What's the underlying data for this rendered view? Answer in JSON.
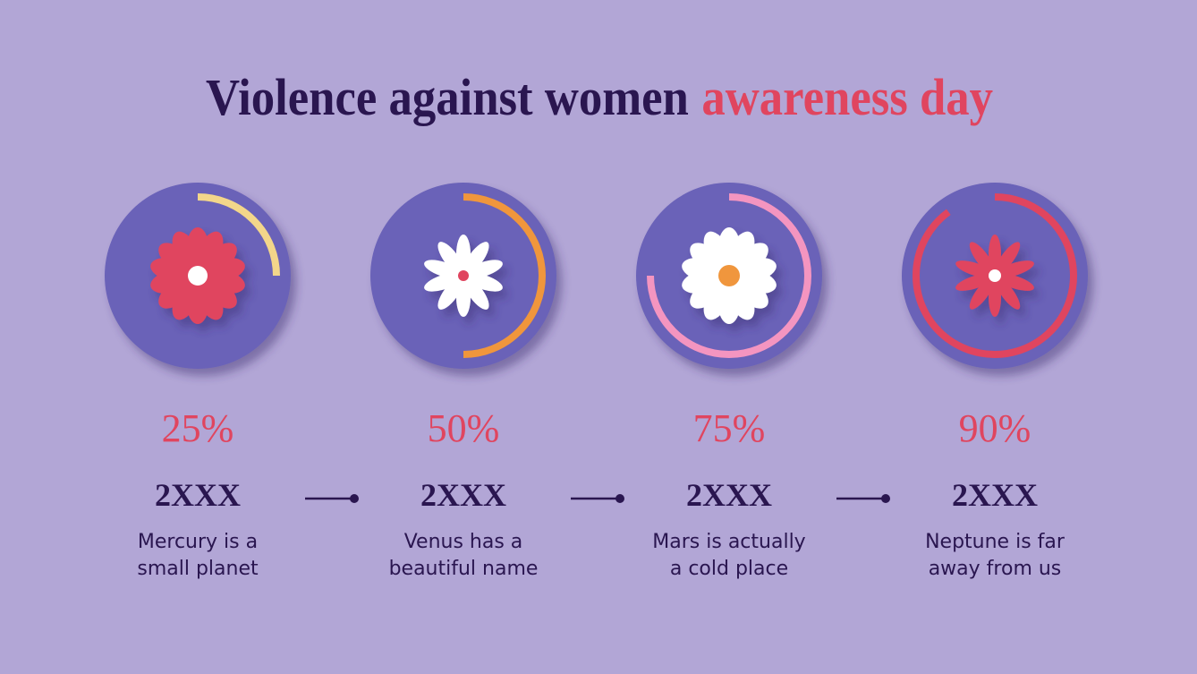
{
  "title": {
    "main": "Violence against women",
    "highlight": "awareness day"
  },
  "items": [
    {
      "percent": 25,
      "percent_label": "25%",
      "year": "2XXX",
      "text": [
        "Mercury is a",
        "small planet"
      ],
      "color": "#f3d68a"
    },
    {
      "percent": 50,
      "percent_label": "50%",
      "year": "2XXX",
      "text": [
        "Venus has a",
        "beautiful name"
      ],
      "color": "#f0963c"
    },
    {
      "percent": 75,
      "percent_label": "75%",
      "year": "2XXX",
      "text": [
        "Mars is actually",
        "a cold place"
      ],
      "color": "#f495c0"
    },
    {
      "percent": 90,
      "percent_label": "90%",
      "year": "2XXX",
      "text": [
        "Neptune is far",
        "away from us"
      ],
      "color": "#e0455f"
    }
  ]
}
